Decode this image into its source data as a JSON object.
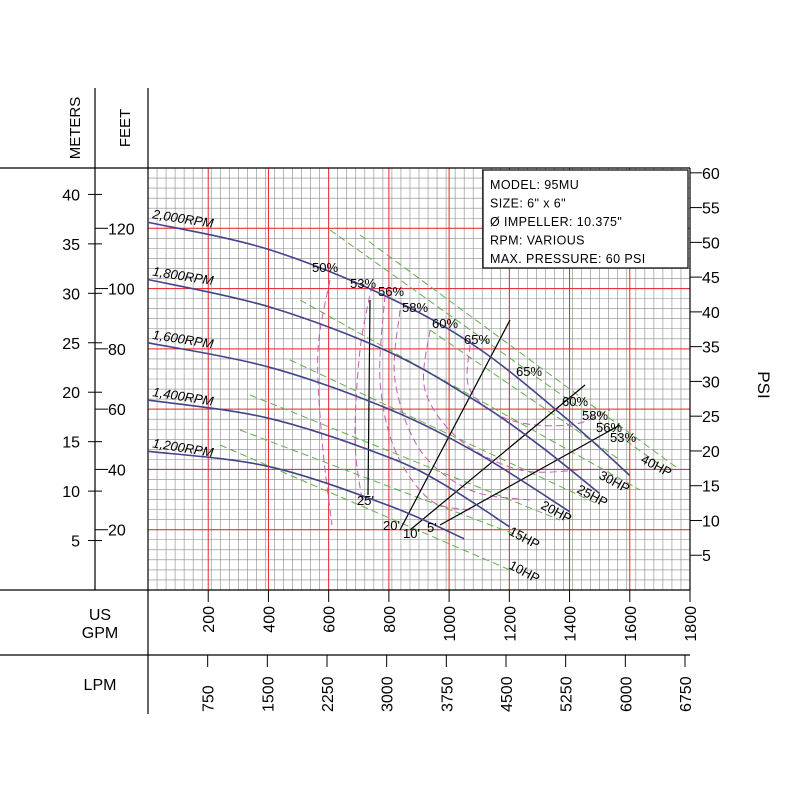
{
  "chart_data": {
    "type": "line",
    "info": [
      "MODEL: 95MU",
      "SIZE: 6\" x 6\"",
      "Ø IMPELLER: 10.375\"",
      "RPM: VARIOUS",
      "MAX. PRESSURE: 60 PSI"
    ],
    "axes": {
      "meters_label": "METERS",
      "feet_label": "FEET",
      "psi_label": "PSI",
      "gpm_label_1": "US",
      "gpm_label_2": "GPM",
      "lpm_label": "LPM",
      "feet_range": [
        0,
        140
      ],
      "gpm_range": [
        0,
        1800
      ],
      "meters_ticks": [
        5,
        10,
        15,
        20,
        25,
        30,
        35,
        40
      ],
      "feet_ticks": [
        20,
        40,
        60,
        80,
        100,
        120
      ],
      "psi_ticks": [
        5,
        10,
        15,
        20,
        25,
        30,
        35,
        40,
        45,
        50,
        55,
        60
      ],
      "gpm_ticks": [
        200,
        400,
        600,
        800,
        1000,
        1200,
        1400,
        1600,
        1800
      ],
      "lpm_ticks": [
        750,
        1500,
        2250,
        3000,
        3750,
        4500,
        5250,
        6000,
        6750
      ]
    },
    "series": [
      {
        "name": "2,000RPM",
        "x": [
          0,
          400,
          800,
          1100,
          1400,
          1600
        ],
        "y": [
          122,
          113,
          97,
          80,
          56,
          38
        ]
      },
      {
        "name": "1,800RPM",
        "x": [
          0,
          400,
          800,
          1100,
          1300,
          1500
        ],
        "y": [
          103,
          94,
          79,
          62,
          48,
          32
        ]
      },
      {
        "name": "1,600RPM",
        "x": [
          0,
          400,
          800,
          1100,
          1400
        ],
        "y": [
          82,
          74,
          60,
          45,
          26
        ]
      },
      {
        "name": "1,400RPM",
        "x": [
          0,
          400,
          800,
          1000,
          1200
        ],
        "y": [
          63,
          57,
          44,
          34,
          21
        ]
      },
      {
        "name": "1,200RPM",
        "x": [
          0,
          400,
          800,
          1050
        ],
        "y": [
          46,
          41,
          28,
          17
        ]
      }
    ],
    "efficiency_labels": [
      "50%",
      "53%",
      "56%",
      "58%",
      "60%",
      "65%",
      "65%",
      "60%",
      "58%",
      "56%",
      "53%"
    ],
    "npshr_labels": [
      "25'",
      "20'",
      "10'",
      "5'"
    ],
    "hp_labels": [
      "40HP",
      "30HP",
      "25HP",
      "20HP",
      "15HP",
      "10HP"
    ],
    "grid": true
  }
}
